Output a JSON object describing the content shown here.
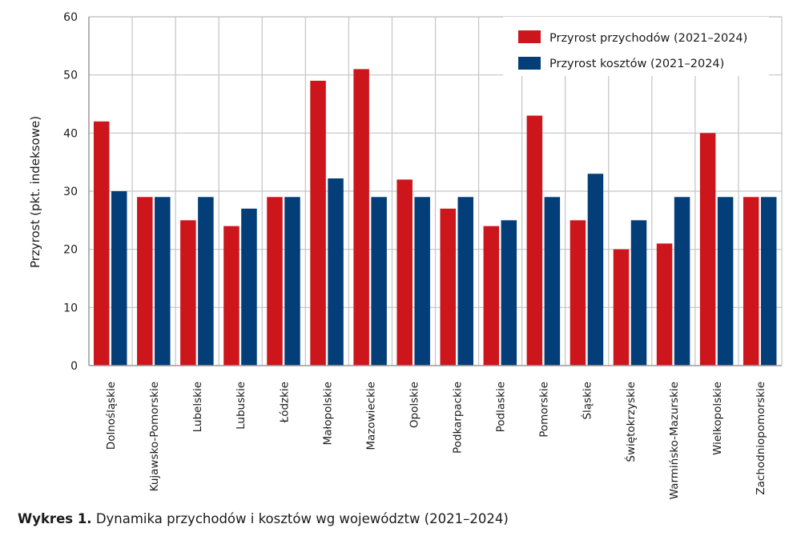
{
  "chart_data": {
    "type": "bar",
    "title": "",
    "xlabel": "",
    "ylabel": "Przyrost (pkt. indeksowe)",
    "ylim": [
      0,
      60
    ],
    "yticks": [
      0,
      10,
      20,
      30,
      40,
      50,
      60
    ],
    "grid": true,
    "legend_position": "top-right",
    "categories": [
      "Dolnośląskie",
      "Kujawsko-Pomorskie",
      "Lubelskie",
      "Lubuskie",
      "Łódzkie",
      "Małopolskie",
      "Mazowieckie",
      "Opolskie",
      "Podkarpackie",
      "Podlaskie",
      "Pomorskie",
      "Śląskie",
      "Świętokrzyskie",
      "Warmińsko-Mazurskie",
      "Wielkopolskie",
      "Zachodniopomorskie"
    ],
    "series": [
      {
        "name": "Przyrost przychodów (2021–2024)",
        "color": "#cc161c",
        "values": [
          42,
          29,
          25,
          24,
          29,
          49,
          51,
          32,
          27,
          24,
          43,
          25,
          20,
          21,
          40,
          29
        ]
      },
      {
        "name": "Przyrost kosztów (2021–2024)",
        "color": "#033e78",
        "values": [
          30,
          29,
          29,
          27,
          29,
          32.2,
          29,
          29,
          29,
          25,
          29,
          33,
          25,
          29,
          29,
          29
        ]
      }
    ]
  },
  "caption": {
    "label": "Wykres 1.",
    "text": " Dynamika przychodów i kosztów wg województw (2021–2024)"
  }
}
